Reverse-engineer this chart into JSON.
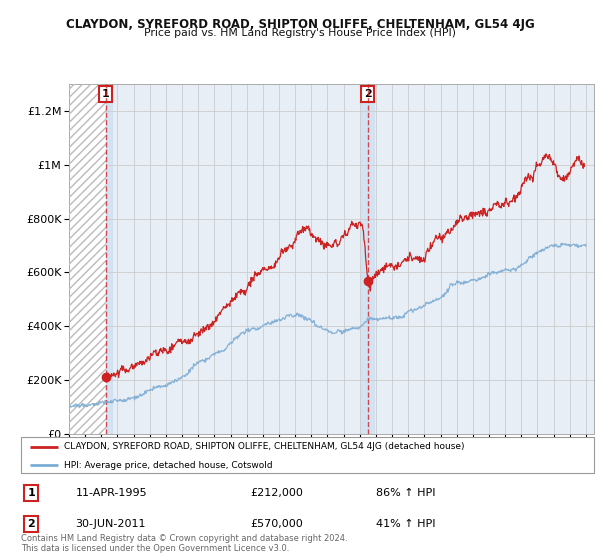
{
  "title": "CLAYDON, SYREFORD ROAD, SHIPTON OLIFFE, CHELTENHAM, GL54 4JG",
  "subtitle": "Price paid vs. HM Land Registry's House Price Index (HPI)",
  "background_color": "#ffffff",
  "plot_bg_color": "#e8eef5",
  "hatch_color": "#bbbbbb",
  "grid_color": "#cccccc",
  "red_line_color": "#cc2222",
  "blue_line_color": "#7bacd4",
  "sale1_date_x": 1995.28,
  "sale1_price": 212000,
  "sale2_date_x": 2011.5,
  "sale2_price": 570000,
  "xmin": 1993.0,
  "xmax": 2025.5,
  "ymin": 0,
  "ymax": 1300000,
  "legend_red": "CLAYDON, SYREFORD ROAD, SHIPTON OLIFFE, CHELTENHAM, GL54 4JG (detached house)",
  "legend_blue": "HPI: Average price, detached house, Cotswold",
  "annotation1_label": "1",
  "annotation1_date": "11-APR-1995",
  "annotation1_price": "£212,000",
  "annotation1_hpi": "86% ↑ HPI",
  "annotation2_label": "2",
  "annotation2_date": "30-JUN-2011",
  "annotation2_price": "£570,000",
  "annotation2_hpi": "41% ↑ HPI",
  "footer": "Contains HM Land Registry data © Crown copyright and database right 2024.\nThis data is licensed under the Open Government Licence v3.0.",
  "yticks": [
    0,
    200000,
    400000,
    600000,
    800000,
    1000000,
    1200000
  ],
  "ytick_labels": [
    "£0",
    "£200K",
    "£400K",
    "£600K",
    "£800K",
    "£1M",
    "£1.2M"
  ],
  "xticks": [
    1993,
    1994,
    1995,
    1996,
    1997,
    1998,
    1999,
    2000,
    2001,
    2002,
    2003,
    2004,
    2005,
    2006,
    2007,
    2008,
    2009,
    2010,
    2011,
    2012,
    2013,
    2014,
    2015,
    2016,
    2017,
    2018,
    2019,
    2020,
    2021,
    2022,
    2023,
    2024,
    2025
  ],
  "red_curve_x": [
    1995.28,
    1995.5,
    1996.0,
    1996.5,
    1997.0,
    1997.5,
    1998.0,
    1998.5,
    1999.0,
    1999.5,
    2000.0,
    2000.5,
    2001.0,
    2001.5,
    2002.0,
    2002.5,
    2003.0,
    2003.5,
    2004.0,
    2004.5,
    2005.0,
    2005.5,
    2006.0,
    2006.5,
    2007.0,
    2007.5,
    2007.8,
    2008.0,
    2008.3,
    2008.6,
    2008.9,
    2009.2,
    2009.5,
    2009.8,
    2010.0,
    2010.3,
    2010.6,
    2010.9,
    2011.2,
    2011.5,
    2011.8,
    2012.0,
    2012.3,
    2012.6,
    2012.9,
    2013.2,
    2013.5,
    2013.8,
    2014.0,
    2014.5,
    2015.0,
    2015.5,
    2016.0,
    2016.5,
    2017.0,
    2017.5,
    2018.0,
    2018.5,
    2019.0,
    2019.5,
    2020.0,
    2020.5,
    2021.0,
    2021.5,
    2022.0,
    2022.3,
    2022.6,
    2022.9,
    2023.2,
    2023.5,
    2023.8,
    2024.0,
    2024.3,
    2024.6,
    2024.9
  ],
  "red_curve_y": [
    212000,
    218000,
    238000,
    255000,
    268000,
    285000,
    305000,
    320000,
    345000,
    368000,
    390000,
    415000,
    430000,
    455000,
    480000,
    510000,
    530000,
    560000,
    590000,
    630000,
    655000,
    680000,
    710000,
    740000,
    770000,
    790000,
    785000,
    770000,
    750000,
    720000,
    700000,
    690000,
    705000,
    720000,
    735000,
    750000,
    760000,
    755000,
    745000,
    570000,
    580000,
    595000,
    610000,
    620000,
    635000,
    645000,
    660000,
    670000,
    680000,
    700000,
    715000,
    730000,
    750000,
    770000,
    790000,
    810000,
    830000,
    845000,
    860000,
    875000,
    880000,
    900000,
    940000,
    980000,
    1030000,
    1050000,
    1060000,
    1040000,
    1010000,
    980000,
    990000,
    1005000,
    1020000,
    1010000,
    1000000
  ],
  "blue_curve_x": [
    1993.0,
    1993.5,
    1994.0,
    1994.5,
    1995.0,
    1995.5,
    1996.0,
    1996.5,
    1997.0,
    1997.5,
    1998.0,
    1998.5,
    1999.0,
    1999.5,
    2000.0,
    2000.5,
    2001.0,
    2001.5,
    2002.0,
    2002.5,
    2003.0,
    2003.5,
    2004.0,
    2004.5,
    2005.0,
    2005.5,
    2006.0,
    2006.5,
    2007.0,
    2007.5,
    2007.8,
    2008.0,
    2008.3,
    2008.6,
    2008.9,
    2009.2,
    2009.5,
    2009.8,
    2010.0,
    2010.3,
    2010.6,
    2010.9,
    2011.2,
    2011.5,
    2011.8,
    2012.0,
    2012.3,
    2012.6,
    2012.9,
    2013.2,
    2013.5,
    2013.8,
    2014.0,
    2014.5,
    2015.0,
    2015.5,
    2016.0,
    2016.5,
    2017.0,
    2017.5,
    2018.0,
    2018.5,
    2019.0,
    2019.5,
    2020.0,
    2020.5,
    2021.0,
    2021.5,
    2022.0,
    2022.5,
    2023.0,
    2023.5,
    2024.0,
    2024.5,
    2025.0
  ],
  "blue_curve_y": [
    100000,
    103000,
    107000,
    112000,
    118000,
    124000,
    132000,
    140000,
    150000,
    162000,
    174000,
    187000,
    200000,
    215000,
    230000,
    248000,
    263000,
    278000,
    295000,
    313000,
    330000,
    348000,
    363000,
    378000,
    390000,
    402000,
    415000,
    425000,
    430000,
    430000,
    420000,
    408000,
    393000,
    378000,
    365000,
    355000,
    350000,
    355000,
    362000,
    368000,
    373000,
    378000,
    385000,
    395000,
    400000,
    403000,
    406000,
    408000,
    410000,
    413000,
    418000,
    423000,
    430000,
    440000,
    452000,
    463000,
    475000,
    488000,
    500000,
    513000,
    525000,
    537000,
    548000,
    558000,
    565000,
    575000,
    595000,
    615000,
    640000,
    660000,
    670000,
    675000,
    685000,
    695000,
    700000
  ]
}
